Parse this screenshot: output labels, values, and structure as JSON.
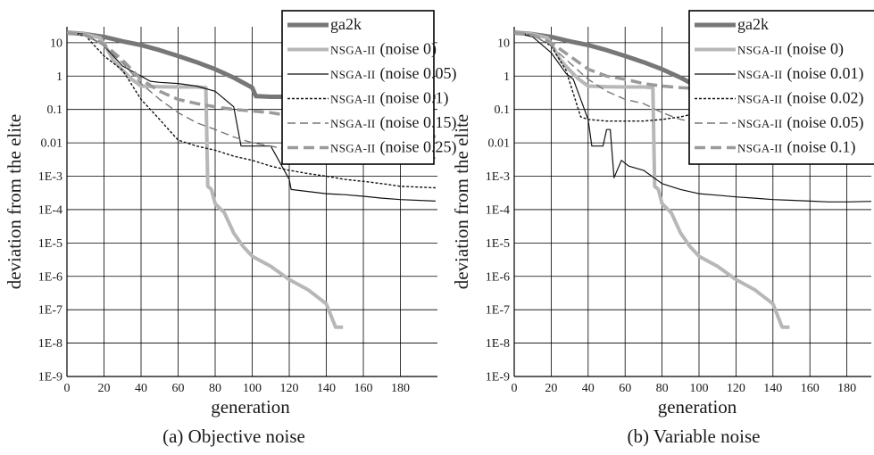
{
  "chart_data": [
    {
      "type": "line",
      "title": "(a) Objective noise",
      "xlabel": "generation",
      "ylabel": "deviation from the elite",
      "xlim": [
        0,
        200
      ],
      "ylim": [
        1e-09,
        30
      ],
      "yscale": "log",
      "grid": true,
      "legend_position": "top-right",
      "x_ticks": [
        "0",
        "20",
        "40",
        "60",
        "80",
        "100",
        "120",
        "140",
        "160",
        "180"
      ],
      "y_ticks": [
        "10",
        "1",
        "0.1",
        "0.01",
        "1E-3",
        "1E-4",
        "1E-5",
        "1E-6",
        "1E-7",
        "1E-8",
        "1E-9"
      ],
      "series": [
        {
          "name": "ga2k",
          "label_main": "ga2k",
          "label_cond": "",
          "style": "thick-dark",
          "x": [
            0,
            5,
            10,
            20,
            30,
            40,
            50,
            60,
            70,
            80,
            90,
            100,
            102,
            110,
            120,
            130,
            140,
            150,
            160,
            170,
            180,
            190,
            199
          ],
          "y": [
            20,
            19,
            18,
            15,
            11,
            8.5,
            6,
            4,
            2.6,
            1.6,
            0.9,
            0.45,
            0.25,
            0.24,
            0.24,
            0.24,
            0.24,
            0.24,
            0.24,
            0.24,
            0.24,
            0.24,
            0.24
          ]
        },
        {
          "name": "NSGA-II (noise 0)",
          "label_main": "NSGA-II",
          "label_cond": "(noise 0)",
          "style": "thick-light",
          "x": [
            0,
            10,
            18,
            22,
            25,
            30,
            35,
            40,
            50,
            60,
            70,
            75,
            76,
            78,
            80,
            85,
            90,
            95,
            100,
            110,
            120,
            130,
            140,
            145,
            149
          ],
          "y": [
            20,
            18,
            14,
            6,
            3,
            1.5,
            0.8,
            0.5,
            0.48,
            0.47,
            0.47,
            0.45,
            0.0005,
            0.0004,
            0.00015,
            8e-05,
            2e-05,
            8e-06,
            4e-06,
            2e-06,
            8e-07,
            4e-07,
            1.5e-07,
            3e-08,
            3e-08
          ]
        },
        {
          "name": "NSGA-II (noise 0.05)",
          "label_main": "NSGA-II",
          "label_cond": "(noise 0.05)",
          "style": "thin-solid",
          "x": [
            0,
            10,
            20,
            30,
            40,
            45,
            50,
            60,
            70,
            80,
            90,
            94,
            100,
            110,
            120,
            121,
            130,
            140,
            150,
            160,
            170,
            180,
            199
          ],
          "y": [
            20,
            18,
            8,
            2,
            1.0,
            0.7,
            0.65,
            0.6,
            0.5,
            0.35,
            0.12,
            0.008,
            0.008,
            0.008,
            0.0008,
            0.0004,
            0.00035,
            0.0003,
            0.00028,
            0.00025,
            0.00022,
            0.0002,
            0.00018
          ]
        },
        {
          "name": "NSGA-II (noise 0.1)",
          "label_main": "NSGA-II",
          "label_cond": "(noise 0.1)",
          "style": "thin-dotted",
          "x": [
            0,
            10,
            20,
            30,
            40,
            50,
            60,
            70,
            80,
            90,
            100,
            110,
            120,
            130,
            140,
            150,
            160,
            170,
            180,
            199
          ],
          "y": [
            20,
            16,
            4,
            1.5,
            0.2,
            0.05,
            0.012,
            0.008,
            0.006,
            0.004,
            0.003,
            0.002,
            0.0015,
            0.0012,
            0.001,
            0.0008,
            0.0007,
            0.0006,
            0.0005,
            0.00045
          ]
        },
        {
          "name": "NSGA-II (noise 0.15)",
          "label_main": "NSGA-II",
          "label_cond": "(noise 0.15)",
          "style": "thin-dashed",
          "x": [
            0,
            10,
            20,
            30,
            40,
            50,
            60,
            70,
            80,
            90,
            100,
            110,
            120,
            130,
            140,
            150,
            160,
            170,
            180,
            199
          ],
          "y": [
            20,
            17,
            8,
            2.5,
            0.6,
            0.2,
            0.08,
            0.04,
            0.025,
            0.015,
            0.01,
            0.008,
            0.006,
            0.005,
            0.0045,
            0.004,
            0.004,
            0.0038,
            0.0036,
            0.0035
          ]
        },
        {
          "name": "NSGA-II (noise 0.25)",
          "label_main": "NSGA-II",
          "label_cond": "(noise 0.25)",
          "style": "thick-dashed",
          "x": [
            0,
            10,
            20,
            30,
            40,
            50,
            60,
            70,
            80,
            90,
            100,
            110,
            120,
            130,
            140,
            150,
            160,
            170,
            180,
            190,
            199
          ],
          "y": [
            20,
            17,
            9,
            3,
            0.8,
            0.35,
            0.2,
            0.15,
            0.12,
            0.1,
            0.09,
            0.08,
            0.065,
            0.055,
            0.045,
            0.04,
            0.035,
            0.03,
            0.028,
            0.022,
            0.015
          ]
        }
      ]
    },
    {
      "type": "line",
      "title": "(b) Variable noise",
      "xlabel": "generation",
      "ylabel": "deviation from the elite",
      "xlim": [
        0,
        200
      ],
      "ylim": [
        1e-09,
        30
      ],
      "yscale": "log",
      "grid": true,
      "legend_position": "top-right",
      "x_ticks": [
        "0",
        "20",
        "40",
        "60",
        "80",
        "100",
        "120",
        "140",
        "160",
        "180"
      ],
      "y_ticks": [
        "10",
        "1",
        "0.1",
        "0.01",
        "1E-3",
        "1E-4",
        "1E-5",
        "1E-6",
        "1E-7",
        "1E-8",
        "1E-9"
      ],
      "series": [
        {
          "name": "ga2k",
          "label_main": "ga2k",
          "label_cond": "",
          "style": "thick-dark",
          "x": [
            0,
            5,
            10,
            20,
            30,
            40,
            50,
            60,
            70,
            80,
            90,
            100,
            102,
            110,
            120,
            130,
            140,
            150,
            160,
            170,
            180,
            190,
            199
          ],
          "y": [
            20,
            19,
            18,
            15,
            11,
            8.5,
            6,
            4,
            2.6,
            1.6,
            0.9,
            0.45,
            0.25,
            0.24,
            0.24,
            0.24,
            0.24,
            0.24,
            0.24,
            0.24,
            0.24,
            0.24,
            0.24
          ]
        },
        {
          "name": "NSGA-II (noise 0)",
          "label_main": "NSGA-II",
          "label_cond": "(noise 0)",
          "style": "thick-light",
          "x": [
            0,
            10,
            18,
            22,
            25,
            30,
            35,
            40,
            50,
            60,
            70,
            75,
            76,
            78,
            80,
            85,
            90,
            95,
            100,
            110,
            120,
            130,
            140,
            145,
            149
          ],
          "y": [
            20,
            18,
            14,
            6,
            3,
            1.5,
            0.8,
            0.5,
            0.48,
            0.47,
            0.47,
            0.45,
            0.0005,
            0.0004,
            0.00015,
            8e-05,
            2e-05,
            8e-06,
            4e-06,
            2e-06,
            8e-07,
            4e-07,
            1.5e-07,
            3e-08,
            3e-08
          ]
        },
        {
          "name": "NSGA-II (noise 0.01)",
          "label_main": "NSGA-II",
          "label_cond": "(noise 0.01)",
          "style": "thin-solid",
          "x": [
            0,
            10,
            20,
            28,
            32,
            36,
            40,
            42,
            48,
            50,
            52,
            54,
            58,
            62,
            70,
            80,
            90,
            100,
            110,
            120,
            130,
            140,
            150,
            160,
            170,
            180,
            199
          ],
          "y": [
            20,
            15,
            5,
            1.2,
            0.8,
            0.2,
            0.05,
            0.008,
            0.008,
            0.025,
            0.025,
            0.0009,
            0.003,
            0.002,
            0.0015,
            0.0006,
            0.0004,
            0.0003,
            0.00027,
            0.00024,
            0.00022,
            0.0002,
            0.00019,
            0.00018,
            0.00017,
            0.00017,
            0.00018
          ]
        },
        {
          "name": "NSGA-II (noise 0.02)",
          "label_main": "NSGA-II",
          "label_cond": "(noise 0.02)",
          "style": "thin-dotted",
          "x": [
            0,
            10,
            20,
            28,
            32,
            36,
            40,
            50,
            60,
            70,
            80,
            90,
            100,
            110,
            120,
            130,
            140,
            150,
            160,
            170,
            180,
            190,
            199
          ],
          "y": [
            20,
            17,
            8,
            1.5,
            0.3,
            0.06,
            0.05,
            0.045,
            0.045,
            0.045,
            0.05,
            0.06,
            0.08,
            0.1,
            0.11,
            0.12,
            0.13,
            0.14,
            0.15,
            0.16,
            0.17,
            0.18,
            0.2
          ]
        },
        {
          "name": "NSGA-II (noise 0.05)",
          "label_main": "NSGA-II",
          "label_cond": "(noise 0.05)",
          "style": "thin-dashed",
          "x": [
            0,
            10,
            20,
            30,
            40,
            50,
            60,
            70,
            80,
            90,
            100,
            110,
            120,
            130,
            140,
            150,
            160,
            170,
            180,
            190,
            199
          ],
          "y": [
            20,
            17,
            8,
            2.5,
            0.8,
            0.35,
            0.2,
            0.15,
            0.08,
            0.05,
            0.04,
            0.035,
            0.032,
            0.03,
            0.028,
            0.025,
            0.022,
            0.02,
            0.018,
            0.016,
            0.015
          ]
        },
        {
          "name": "NSGA-II (noise 0.1)",
          "label_main": "NSGA-II",
          "label_cond": "(noise 0.1)",
          "style": "thick-dashed",
          "x": [
            0,
            10,
            20,
            30,
            40,
            50,
            60,
            70,
            80,
            90,
            100,
            110,
            120,
            130,
            140,
            150,
            160,
            170,
            180,
            190,
            199
          ],
          "y": [
            20,
            17,
            10,
            4,
            1.6,
            1.0,
            0.8,
            0.6,
            0.5,
            0.45,
            0.42,
            0.4,
            0.38,
            0.36,
            0.35,
            0.34,
            0.33,
            0.32,
            0.32,
            0.32,
            0.32
          ]
        }
      ]
    }
  ]
}
